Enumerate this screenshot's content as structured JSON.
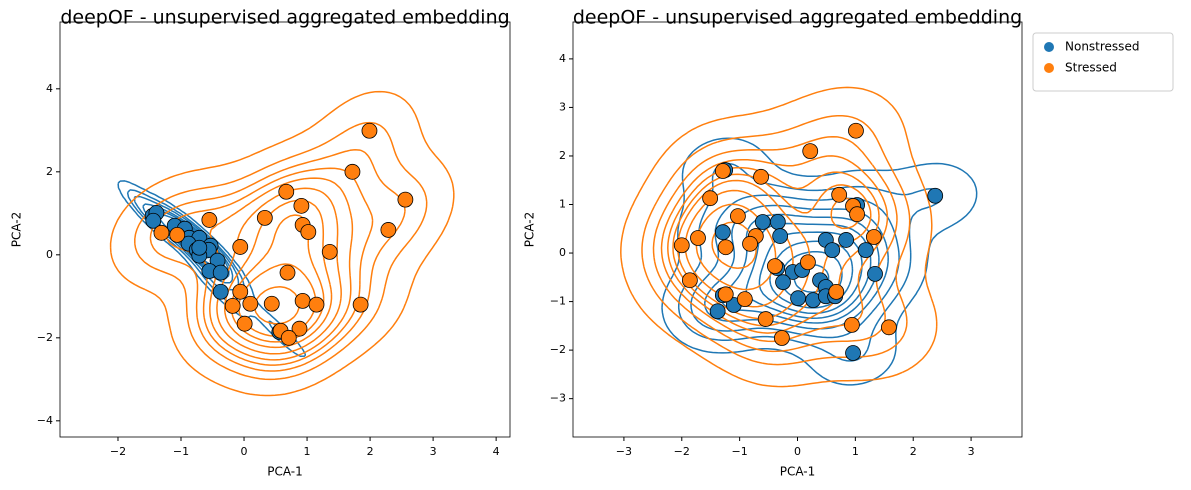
{
  "chart_data": [
    {
      "type": "scatter",
      "title": "deepOF - unsupervised aggregated embedding",
      "x_label": "PCA-1",
      "y_label": "PCA-2",
      "xlim": [
        -2.92,
        4.22
      ],
      "ylim": [
        -4.39,
        5.61
      ],
      "xticks": [
        {
          "value": -2,
          "label": "−2"
        },
        {
          "value": -1,
          "label": "−1"
        },
        0,
        1,
        2,
        3,
        4
      ],
      "yticks": [
        {
          "value": -4,
          "label": "−4"
        },
        {
          "value": -2,
          "label": "−2"
        },
        0,
        2,
        4
      ],
      "kde": true,
      "series": [
        {
          "name": "Nonstressed",
          "color": "#1f77b4",
          "x": [
            -1.45,
            -1.39,
            -1.44,
            -1.1,
            -0.94,
            -0.87,
            -0.71,
            -0.88,
            -0.75,
            -0.53,
            -0.56,
            -0.42,
            -0.71,
            -0.55,
            -0.37,
            -0.37,
            0.56,
            -0.71
          ],
          "y": [
            0.94,
            1.01,
            0.82,
            0.7,
            0.63,
            0.41,
            0.41,
            0.27,
            0.12,
            0.22,
            0.12,
            -0.14,
            -0.02,
            -0.39,
            -0.43,
            -0.89,
            -1.86,
            0.17
          ]
        },
        {
          "name": "Stressed",
          "color": "#ff7f0e",
          "x": [
            1.99,
            1.72,
            2.56,
            2.29,
            0.67,
            0.91,
            0.33,
            0.93,
            1.02,
            1.36,
            -0.06,
            -0.55,
            -1.31,
            -1.06,
            0.69,
            -0.06,
            -0.18,
            0.1,
            0.44,
            0.93,
            1.15,
            1.85,
            0.01,
            0.58,
            0.88,
            0.71
          ],
          "y": [
            2.99,
            2.0,
            1.33,
            0.6,
            1.52,
            1.18,
            0.89,
            0.72,
            0.55,
            0.07,
            0.19,
            0.84,
            0.53,
            0.48,
            -0.43,
            -0.89,
            -1.23,
            -1.18,
            -1.18,
            -1.11,
            -1.2,
            -1.2,
            -1.66,
            -1.83,
            -1.78,
            -2.0
          ]
        }
      ]
    },
    {
      "type": "scatter",
      "title": "deepOF - unsupervised aggregated embedding",
      "x_label": "PCA-1",
      "y_label": "PCA-2",
      "xlim": [
        -3.88,
        3.88
      ],
      "ylim": [
        -3.79,
        4.76
      ],
      "xticks": [
        {
          "value": -3,
          "label": "−3"
        },
        {
          "value": -2,
          "label": "−2"
        },
        {
          "value": -1,
          "label": "−1"
        },
        0,
        1,
        2,
        3
      ],
      "yticks": [
        {
          "value": -3,
          "label": "−3"
        },
        {
          "value": -2,
          "label": "−2"
        },
        {
          "value": -1,
          "label": "−1"
        },
        0,
        1,
        2,
        3,
        4
      ],
      "kde": true,
      "legend": "outside-upper-right",
      "series": [
        {
          "name": "Nonstressed",
          "color": "#1f77b4",
          "x": [
            2.38,
            -1.29,
            -0.6,
            -0.34,
            -0.3,
            0.49,
            0.84,
            0.6,
            1.18,
            1.34,
            -0.35,
            -0.08,
            0.08,
            -0.25,
            0.01,
            0.27,
            0.39,
            0.49,
            0.49,
            0.65,
            -1.29,
            -1.1,
            -1.38,
            0.96,
            1.03,
            -1.25
          ],
          "y": [
            1.18,
            0.43,
            0.64,
            0.64,
            0.35,
            0.27,
            0.27,
            0.06,
            0.06,
            -0.43,
            -0.31,
            -0.39,
            -0.35,
            -0.6,
            -0.93,
            -0.97,
            -0.56,
            -0.7,
            -0.89,
            -0.89,
            -0.87,
            -1.07,
            -1.2,
            -2.06,
            0.99,
            1.71
          ]
        },
        {
          "name": "Stressed",
          "color": "#ff7f0e",
          "x": [
            1.01,
            0.22,
            -1.29,
            -0.63,
            -1.51,
            0.72,
            0.96,
            1.03,
            -1.03,
            -1.72,
            -2.0,
            -0.72,
            -0.82,
            -1.24,
            1.32,
            -0.39,
            0.18,
            -1.86,
            -1.24,
            -0.91,
            -0.55,
            -0.27,
            0.67,
            0.94,
            1.58
          ],
          "y": [
            2.52,
            2.1,
            1.69,
            1.57,
            1.13,
            1.2,
            0.97,
            0.8,
            0.76,
            0.31,
            0.16,
            0.35,
            0.19,
            0.12,
            0.33,
            -0.27,
            -0.19,
            -0.56,
            -0.85,
            -0.95,
            -1.36,
            -1.75,
            -0.8,
            -1.48,
            -1.53
          ]
        }
      ]
    }
  ]
}
